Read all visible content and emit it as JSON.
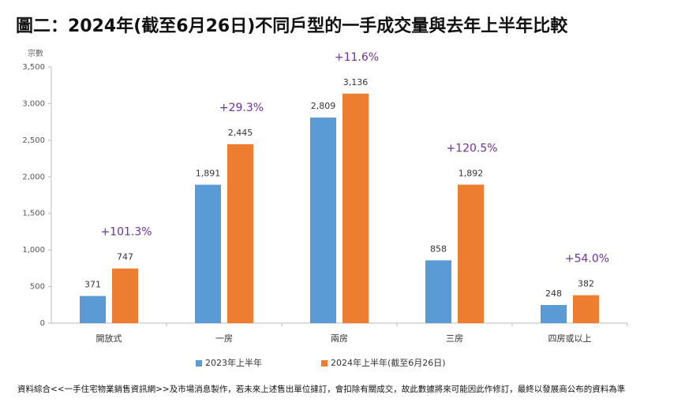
{
  "chart_data": {
    "type": "bar",
    "title": "圖二：2024年(截至6月26日)不同戶型的一手成交量與去年上半年比較",
    "y_label": "宗數",
    "categories": [
      "開放式",
      "一房",
      "兩房",
      "三房",
      "四房或以上"
    ],
    "series": [
      {
        "name": "2023年上半年",
        "color": "#5b9bd5",
        "values": [
          371,
          1891,
          2809,
          858,
          248
        ],
        "value_labels": [
          "371",
          "1,891",
          "2,809",
          "858",
          "248"
        ]
      },
      {
        "name": "2024年上半年(截至6月26日)",
        "color": "#ed7d31",
        "values": [
          747,
          2445,
          3136,
          1892,
          382
        ],
        "value_labels": [
          "747",
          "2,445",
          "3,136",
          "1,892",
          "382"
        ]
      }
    ],
    "annotations": [
      "+101.3%",
      "+29.3%",
      "+11.6%",
      "+120.5%",
      "+54.0%"
    ],
    "annotation_color": "#7030a0",
    "ylim": [
      0,
      3500
    ],
    "yticks": [
      0,
      500,
      {
        "value": 1000,
        "label": "1,000"
      },
      {
        "value": 1500,
        "label": "1,500"
      },
      {
        "value": 2000,
        "label": "2,000"
      },
      {
        "value": 2500,
        "label": "2,500"
      },
      {
        "value": 3000,
        "label": "3,000"
      },
      {
        "value": 3500,
        "label": "3,500"
      }
    ],
    "legend": "bottom",
    "footnote": "資料綜合<<一手住宅物業銷售資訊網>>及市場消息製作，若未來上述售出單位撻訂，會扣除有關成交，故此數據將來可能因此作修訂，最終以發展商公布的資料為準"
  }
}
